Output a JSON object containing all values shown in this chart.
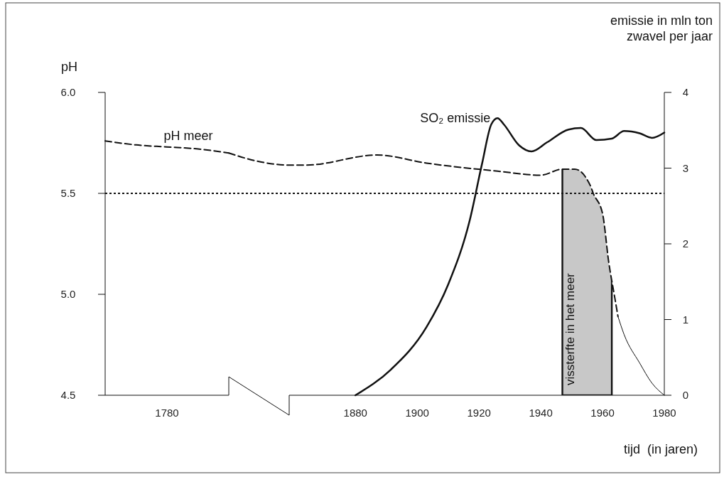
{
  "chart_data": [
    {
      "type": "line",
      "ylabel": "pH",
      "categories": [
        null,
        null,
        "1780",
        null,
        null
      ],
      "ylim": [
        4.5,
        6.0
      ],
      "yticks": [
        {
          "value": 4.5,
          "label": "4.5"
        },
        {
          "value": 5.0,
          "label": "5.0"
        },
        {
          "value": 5.5,
          "label": "5.5"
        },
        {
          "value": 6.0,
          "label": "6.0"
        }
      ],
      "series": [
        {
          "name": "pH meer",
          "color": "#111111",
          "line_style": "dashed",
          "values": [
            5.76,
            5.74,
            5.73,
            5.72,
            5.7
          ]
        }
      ],
      "ref_lines": [
        {
          "axis": "y",
          "value": 5.5,
          "line_style": "dotted",
          "color": "#111111"
        }
      ]
    },
    {
      "type": "line",
      "y2label": "emissie in mln ton\nzwavel per jaar",
      "xlabel": "tijd  (in jaren)",
      "xlim": [
        1839,
        1980
      ],
      "xticks": [
        1880,
        1900,
        1920,
        1940,
        1960,
        1980
      ],
      "ylim": [
        4.5,
        6.0
      ],
      "y2lim": [
        0,
        4
      ],
      "y2ticks": [
        0,
        1,
        2,
        3,
        4
      ],
      "series": [
        {
          "color": "#111111",
          "line_style": "dashed",
          "x": [
            1839,
            1848,
            1859,
            1864,
            1887,
            1903,
            1926,
            1940,
            1947,
            1951,
            1956,
            1957,
            1960,
            1962,
            1964,
            1965
          ],
          "values": [
            5.7,
            5.66,
            5.64,
            5.64,
            5.69,
            5.65,
            5.61,
            5.59,
            5.62,
            5.62,
            5.54,
            5.5,
            5.4,
            5.16,
            4.98,
            4.89
          ]
        },
        {
          "color": "#111111",
          "line_style": "solid",
          "x": [
            1965,
            1967,
            1972,
            1976,
            1980
          ],
          "values": [
            4.89,
            4.8,
            4.66,
            4.56,
            4.5
          ]
        },
        {
          "name": "SO₂ emissie",
          "color": "#111111",
          "line_style": "solid",
          "axis": "y2",
          "x": [
            1880,
            1891.5,
            1903,
            1910,
            1917,
            1921,
            1924,
            1926,
            1928,
            1933,
            1937,
            1942,
            1949,
            1953,
            1958,
            1963,
            1967,
            1972,
            1976,
            1980
          ],
          "values": [
            0,
            0.34,
            0.9,
            1.46,
            2.31,
            3.06,
            3.58,
            3.66,
            3.58,
            3.3,
            3.22,
            3.34,
            3.51,
            3.53,
            3.37,
            3.39,
            3.49,
            3.46,
            3.4,
            3.47
          ]
        }
      ],
      "ref_lines": [
        {
          "axis": "y",
          "value": 5.5,
          "line_style": "dotted",
          "color": "#111111"
        }
      ],
      "bands": [
        {
          "axis": "x",
          "from": 1947,
          "to": 1963,
          "label": "vissterfte in het meer",
          "color": "#c8c8c8"
        }
      ]
    }
  ]
}
